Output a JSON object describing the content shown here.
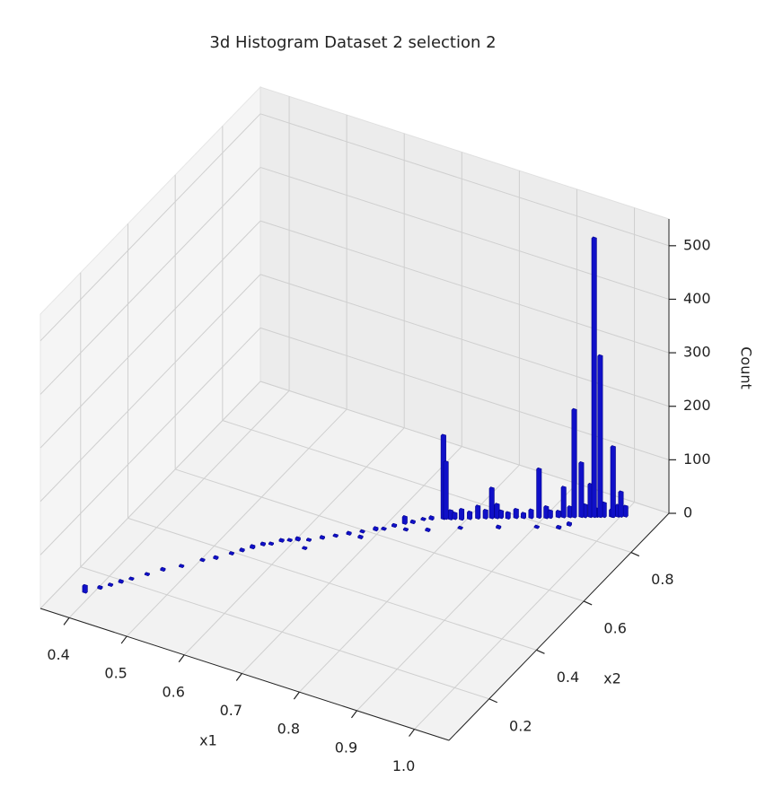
{
  "chart_data": {
    "type": "bar3d",
    "title": "3d Histogram Dataset 2 selection 2",
    "xlabel": "x1",
    "ylabel": "x2",
    "zlabel": "Count",
    "xlim": [
      0.35,
      1.06
    ],
    "ylim": [
      0.03,
      0.96
    ],
    "zlim": [
      0,
      550
    ],
    "xticks": [
      0.4,
      0.5,
      0.6,
      0.7,
      0.8,
      0.9,
      {
        "value": 1,
        "label": "1.0"
      }
    ],
    "yticks": [
      0.2,
      0.4,
      0.6,
      0.8
    ],
    "zticks": [
      0,
      100,
      200,
      300,
      400,
      500
    ],
    "grid": true,
    "series": [
      {
        "color": "#1010c8",
        "x": [
          0.385,
          0.4,
          0.41,
          0.42,
          0.43,
          0.445,
          0.46,
          0.48,
          0.5,
          0.515,
          0.53,
          0.54,
          0.55,
          0.56,
          0.57,
          0.58,
          0.59,
          0.6,
          0.615,
          0.63,
          0.645,
          0.66,
          0.675,
          0.69,
          0.7,
          0.71,
          0.72,
          0.73,
          0.74,
          0.75,
          0.62,
          0.68,
          0.73,
          0.76,
          0.8,
          0.85,
          0.9,
          0.93,
          0.94,
          0.775,
          0.78,
          0.79,
          0.8,
          0.81,
          0.82,
          0.835,
          0.84,
          0.85,
          0.86,
          0.87,
          0.88,
          0.9,
          0.905,
          0.915,
          0.93,
          0.95,
          0.965,
          0.975,
          0.985,
          0.993,
          1.003,
          0.765,
          0.768,
          0.828,
          0.89,
          0.922,
          0.936,
          0.945,
          0.957,
          0.962,
          0.97,
          0.987,
          0.997
        ],
        "y": [
          0.123,
          0.15,
          0.17,
          0.19,
          0.21,
          0.24,
          0.27,
          0.3,
          0.34,
          0.36,
          0.39,
          0.41,
          0.43,
          0.45,
          0.46,
          0.48,
          0.49,
          0.5,
          0.51,
          0.53,
          0.55,
          0.57,
          0.59,
          0.61,
          0.62,
          0.64,
          0.66,
          0.67,
          0.69,
          0.7,
          0.48,
          0.57,
          0.64,
          0.66,
          0.7,
          0.74,
          0.78,
          0.8,
          0.82,
          0.72,
          0.725,
          0.73,
          0.74,
          0.75,
          0.758,
          0.77,
          0.775,
          0.78,
          0.79,
          0.797,
          0.805,
          0.82,
          0.825,
          0.835,
          0.847,
          0.862,
          0.875,
          0.882,
          0.89,
          0.897,
          0.905,
          0.714,
          0.717,
          0.765,
          0.814,
          0.84,
          0.851,
          0.859,
          0.868,
          0.872,
          0.878,
          0.891,
          0.9
        ],
        "values": [
          12,
          3,
          2,
          3,
          2,
          2,
          3,
          2,
          2,
          3,
          2,
          3,
          4,
          3,
          2,
          3,
          2,
          4,
          2,
          3,
          2,
          3,
          2,
          4,
          2,
          3,
          12,
          3,
          2,
          4,
          2,
          3,
          2,
          3,
          2,
          3,
          2,
          3,
          4,
          15,
          10,
          18,
          12,
          22,
          14,
          25,
          12,
          10,
          15,
          8,
          14,
          20,
          12,
          10,
          18,
          22,
          14,
          25,
          12,
          20,
          18,
          155,
          105,
          55,
          90,
          55,
          200,
          100,
          60,
          520,
          300,
          130,
          45
        ]
      }
    ]
  }
}
